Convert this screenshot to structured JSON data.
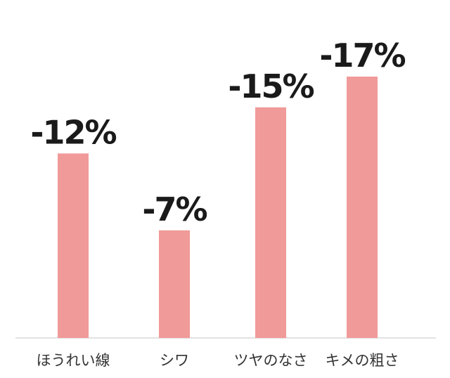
{
  "chart_data": {
    "type": "bar",
    "title": "",
    "xlabel": "",
    "ylabel": "",
    "categories": [
      "ほうれい線",
      "シワ",
      "ツヤのなさ",
      "キメの粗さ"
    ],
    "values": [
      -12,
      -7,
      -15,
      -17
    ],
    "value_labels": [
      "-12%",
      "-7%",
      "-15%",
      "-17%"
    ],
    "unit": "%",
    "grid": false,
    "legend": "none",
    "bar_color": "#f09a99"
  }
}
